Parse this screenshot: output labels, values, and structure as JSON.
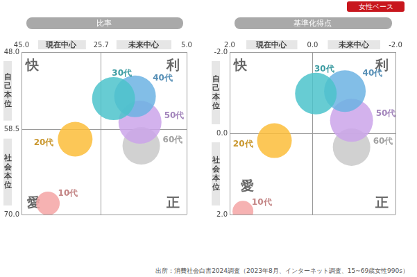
{
  "badge": "女性ベース",
  "source": "出所：消費社会白書2024調査（2023年8月、インターネット調査、15~69歳女性990s）",
  "chart_data": [
    {
      "type": "bubble",
      "title": "比率",
      "x_labels": [
        "現在中心",
        "未来中心"
      ],
      "y_labels": [
        "自己本位",
        "社会本位"
      ],
      "quadrant_labels": [
        "快",
        "利",
        "愛",
        "正"
      ],
      "xlim": [
        45,
        5
      ],
      "xticks": [
        {
          "value": 45,
          "label": "45.0"
        },
        {
          "value": 25.7,
          "label": "25.7"
        },
        {
          "value": 5,
          "label": "5.0"
        }
      ],
      "ylim": [
        70,
        48
      ],
      "yticks": [
        {
          "value": 48,
          "label": "48.0"
        },
        {
          "value": 58.5,
          "label": "58.5"
        },
        {
          "value": 70,
          "label": "70.0"
        }
      ],
      "grid": true,
      "series": [
        {
          "name": "10代",
          "color": "#f4a5a5",
          "x": [
            38.6
          ],
          "y": [
            68.5
          ],
          "sizes": [
            17
          ]
        },
        {
          "name": "20代",
          "color": "#fbbd3a",
          "x": [
            32.0
          ],
          "y": [
            59.8
          ],
          "sizes": [
            25
          ]
        },
        {
          "name": "30代",
          "color": "#4cc3cb",
          "x": [
            22.7
          ],
          "y": [
            54.3
          ],
          "sizes": [
            31
          ]
        },
        {
          "name": "40代",
          "color": "#6cb3e3",
          "x": [
            17.5
          ],
          "y": [
            54.0
          ],
          "sizes": [
            30
          ]
        },
        {
          "name": "50代",
          "color": "#cba5ea",
          "x": [
            16.3
          ],
          "y": [
            57.5
          ],
          "sizes": [
            31
          ]
        },
        {
          "name": "60代",
          "color": "#c9c9c9",
          "x": [
            16.0
          ],
          "y": [
            60.7
          ],
          "sizes": [
            27
          ]
        }
      ]
    },
    {
      "type": "bubble",
      "title": "基準化得点",
      "x_labels": [
        "現在中心",
        "未来中心"
      ],
      "y_labels": [
        "自己本位",
        "社会本位"
      ],
      "quadrant_labels": [
        "快",
        "利",
        "愛",
        "正"
      ],
      "xlim": [
        2,
        -2
      ],
      "xticks": [
        {
          "value": 2,
          "label": "2.0"
        },
        {
          "value": 0,
          "label": "0.0"
        },
        {
          "value": -2,
          "label": "-2.0"
        }
      ],
      "ylim": [
        2,
        -2
      ],
      "yticks": [
        {
          "value": -2,
          "label": "-2.0"
        },
        {
          "value": 0,
          "label": "0.0"
        },
        {
          "value": 2,
          "label": "2.0"
        }
      ],
      "grid": true,
      "series": [
        {
          "name": "10代",
          "color": "#f4a5a5",
          "x": [
            1.68
          ],
          "y": [
            1.92
          ],
          "sizes": [
            15
          ]
        },
        {
          "name": "20代",
          "color": "#fbbd3a",
          "x": [
            0.92
          ],
          "y": [
            0.18
          ],
          "sizes": [
            25
          ]
        },
        {
          "name": "30代",
          "color": "#4cc3cb",
          "x": [
            -0.08
          ],
          "y": [
            -0.98
          ],
          "sizes": [
            30
          ]
        },
        {
          "name": "40代",
          "color": "#6cb3e3",
          "x": [
            -0.78
          ],
          "y": [
            -1.04
          ],
          "sizes": [
            30
          ]
        },
        {
          "name": "50代",
          "color": "#cba5ea",
          "x": [
            -0.94
          ],
          "y": [
            -0.32
          ],
          "sizes": [
            31
          ]
        },
        {
          "name": "60代",
          "color": "#c9c9c9",
          "x": [
            -0.94
          ],
          "y": [
            0.34
          ],
          "sizes": [
            27
          ]
        }
      ]
    }
  ]
}
